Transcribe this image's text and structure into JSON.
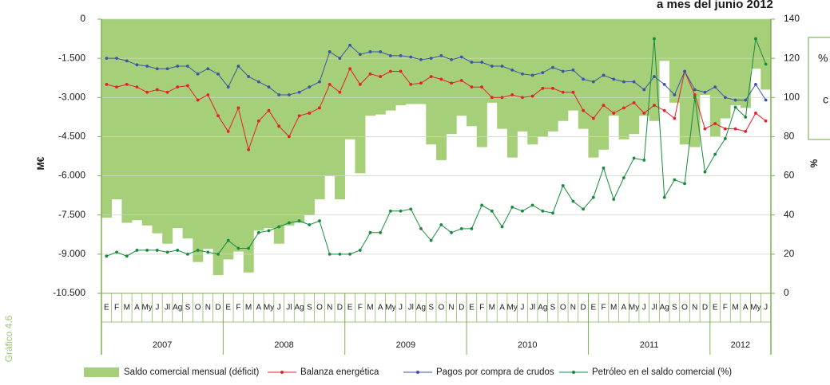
{
  "chart_data": {
    "type": "bar_line",
    "title": "a mes del junio 2012",
    "source_label": "Gráfico 4.6",
    "annotations": [
      "%",
      "c"
    ],
    "ylabel": "M€",
    "y2label": "%",
    "categories": [
      "E",
      "F",
      "M",
      "A",
      "My",
      "J",
      "Jl",
      "Ag",
      "S",
      "O",
      "N",
      "D",
      "E",
      "F",
      "M",
      "A",
      "My",
      "J",
      "Jl",
      "Ag",
      "S",
      "O",
      "N",
      "D",
      "E",
      "F",
      "M",
      "A",
      "My",
      "J",
      "Jl",
      "Ag",
      "S",
      "O",
      "N",
      "D",
      "E",
      "F",
      "M",
      "A",
      "My",
      "J",
      "Jl",
      "Ag",
      "S",
      "O",
      "N",
      "D",
      "E",
      "F",
      "M",
      "A",
      "My",
      "J",
      "Jl",
      "Ag",
      "S",
      "O",
      "N",
      "D",
      "E",
      "F",
      "M",
      "A",
      "My",
      "J"
    ],
    "years": [
      "2007",
      "2008",
      "2009",
      "2010",
      "2011",
      "2012"
    ],
    "ylim": [
      -10500,
      0
    ],
    "yticks": [
      0,
      {
        "value": -1500,
        "label": "-1.500"
      },
      {
        "value": -3000,
        "label": "-3.000"
      },
      {
        "value": -4500,
        "label": "-4.500"
      },
      {
        "value": -6000,
        "label": "-6.000"
      },
      {
        "value": -7500,
        "label": "-7.500"
      },
      {
        "value": -9000,
        "label": "-9.000"
      },
      {
        "value": -10500,
        "label": "-10.500"
      }
    ],
    "y2lim": [
      0,
      140
    ],
    "y2ticks": [
      0,
      20,
      40,
      60,
      80,
      100,
      120,
      140
    ],
    "grid": true,
    "series": [
      {
        "name": "Saldo comercial mensual (déficit)",
        "kind": "bar",
        "color": "#a5cf78",
        "values": [
          -7600,
          -6900,
          -7800,
          -7700,
          -7900,
          -8200,
          -8600,
          -8000,
          -8400,
          -9300,
          -8800,
          -9800,
          -9200,
          -8900,
          -9700,
          -8100,
          -8000,
          -8600,
          -7900,
          -7800,
          -7500,
          -6900,
          -6000,
          -6900,
          -4600,
          -5900,
          -3700,
          -3650,
          -3500,
          -3300,
          -3250,
          -3250,
          -4800,
          -5400,
          -4400,
          -3700,
          -4100,
          -4900,
          -3200,
          -4200,
          -5300,
          -4300,
          -4800,
          -4500,
          -4300,
          -3900,
          -3500,
          -4200,
          -5300,
          -5000,
          -3700,
          -4600,
          -4400,
          -3700,
          -3900,
          -1600,
          -3200,
          -4800,
          -4900,
          -2900,
          -4500,
          -3800,
          -3300,
          -3400,
          -1900,
          -2700
        ]
      },
      {
        "name": "Balanza energética",
        "kind": "line",
        "color": "#e3202b",
        "values": [
          -2500,
          -2600,
          -2500,
          -2600,
          -2800,
          -2700,
          -2800,
          -2600,
          -2550,
          -3100,
          -2900,
          -3700,
          -4300,
          -3400,
          -5000,
          -3900,
          -3500,
          -4100,
          -4500,
          -3700,
          -3600,
          -3400,
          -2500,
          -2800,
          -1900,
          -2500,
          -2100,
          -2200,
          -2000,
          -2000,
          -2500,
          -2450,
          -2200,
          -2300,
          -2450,
          -2350,
          -2600,
          -2600,
          -3000,
          -3000,
          -2900,
          -3000,
          -2950,
          -2650,
          -2650,
          -2800,
          -2800,
          -3500,
          -3800,
          -3300,
          -3600,
          -3400,
          -3200,
          -3600,
          -3300,
          -3500,
          -3800,
          -2000,
          -2900,
          -4200,
          -4000,
          -4200,
          -4200,
          -4300,
          -3600,
          -3900
        ]
      },
      {
        "name": "Pagos por compra de crudos",
        "kind": "line",
        "color": "#3a55a4",
        "values": [
          -1500,
          -1500,
          -1600,
          -1750,
          -1800,
          -1900,
          -1900,
          -1800,
          -1800,
          -2100,
          -1900,
          -2100,
          -2600,
          -1800,
          -2200,
          -2400,
          -2600,
          -2900,
          -2900,
          -2800,
          -2600,
          -2400,
          -1250,
          -1500,
          -1000,
          -1350,
          -1250,
          -1250,
          -1400,
          -1400,
          -1450,
          -1550,
          -1500,
          -1400,
          -1550,
          -1450,
          -1650,
          -1650,
          -1800,
          -1800,
          -1950,
          -2100,
          -2150,
          -2050,
          -1850,
          -2000,
          -1950,
          -2300,
          -2400,
          -2150,
          -2300,
          -2400,
          -2400,
          -2700,
          -2200,
          -2500,
          -2900,
          -2000,
          -2700,
          -2800,
          -2600,
          -3000,
          -3100,
          -3100,
          -2500,
          -3100
        ]
      },
      {
        "name": "Petróleo en el saldo comercial (%)",
        "kind": "line",
        "axis": "y2",
        "color": "#178a3c",
        "values": [
          19,
          21,
          19,
          22,
          22,
          22,
          21,
          22,
          20,
          22,
          21,
          20,
          27,
          23,
          23,
          31,
          32,
          34,
          36,
          37,
          35,
          37,
          20,
          20,
          20,
          22,
          31,
          31,
          42,
          42,
          43,
          33,
          27,
          35,
          31,
          33,
          33,
          45,
          42,
          34,
          44,
          42,
          45,
          42,
          41,
          55,
          47,
          43,
          49,
          64,
          48,
          59,
          69,
          68,
          130,
          49,
          58,
          56,
          100,
          62,
          71,
          79,
          95,
          90,
          130,
          117
        ]
      }
    ]
  }
}
